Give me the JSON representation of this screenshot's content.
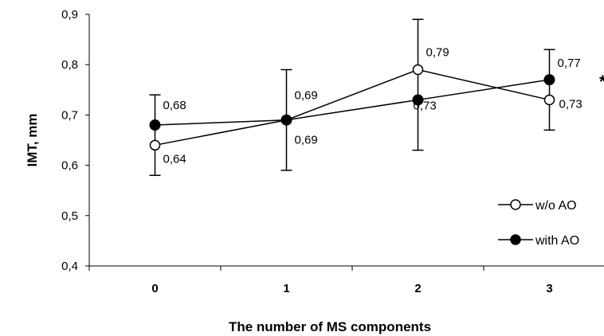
{
  "chart_data": {
    "type": "line",
    "title": "",
    "xlabel": "The number of MS components",
    "ylabel": "IMT, mm",
    "categories": [
      "0",
      "1",
      "2",
      "3"
    ],
    "ylim": [
      0.4,
      0.9
    ],
    "yticks": [
      "0,4",
      "0,5",
      "0,6",
      "0,7",
      "0,8",
      "0,9"
    ],
    "grid": false,
    "legend_position": "right",
    "extra_mark": "*",
    "series": [
      {
        "name": "w/o AO",
        "marker": "open-circle",
        "values": [
          0.64,
          0.69,
          0.79,
          0.73
        ],
        "labels": [
          "0,64",
          "0,69",
          "0,79",
          "0,73"
        ],
        "error_low": [
          0.58,
          0.59,
          0.63,
          0.67
        ],
        "error_high": [
          0.74,
          0.79,
          0.89,
          0.83
        ]
      },
      {
        "name": "with AO",
        "marker": "filled-circle",
        "values": [
          0.68,
          0.69,
          0.73,
          0.77
        ],
        "labels": [
          "0,68",
          "0,69",
          "0,73",
          "0,77"
        ]
      }
    ]
  }
}
